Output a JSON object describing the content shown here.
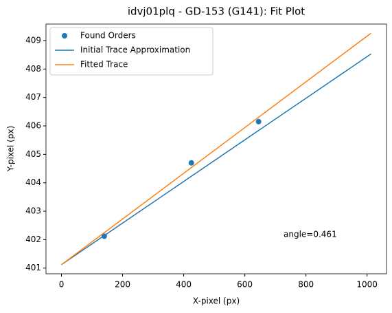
{
  "chart_data": {
    "type": "line",
    "title": "idvj01plq - GD-153 (G141): Fit Plot",
    "x_label": "X-pixel (px)",
    "y_label": "Y-pixel (px)",
    "xlim": [
      -50.6,
      1063.6
    ],
    "ylim": [
      400.8,
      409.58
    ],
    "xticks": [
      0,
      200,
      400,
      600,
      800,
      1000
    ],
    "yticks": [
      401,
      402,
      403,
      404,
      405,
      406,
      407,
      408,
      409
    ],
    "legend": "upper left",
    "grid": false,
    "series": [
      {
        "name": "Found Orders",
        "kind": "scatter",
        "color": "#1f77b4",
        "x": [
          140,
          425,
          645
        ],
        "values": [
          402.12,
          404.7,
          406.15
        ]
      },
      {
        "name": "Initial Trace Approximation",
        "kind": "line",
        "color": "#1f77b4",
        "x": [
          0,
          1013
        ],
        "values": [
          401.12,
          408.53
        ]
      },
      {
        "name": "Fitted Trace",
        "kind": "line",
        "color": "#ff7f0e",
        "x": [
          0,
          1013
        ],
        "values": [
          401.12,
          409.26
        ]
      }
    ],
    "annotation": "angle=0.461"
  }
}
